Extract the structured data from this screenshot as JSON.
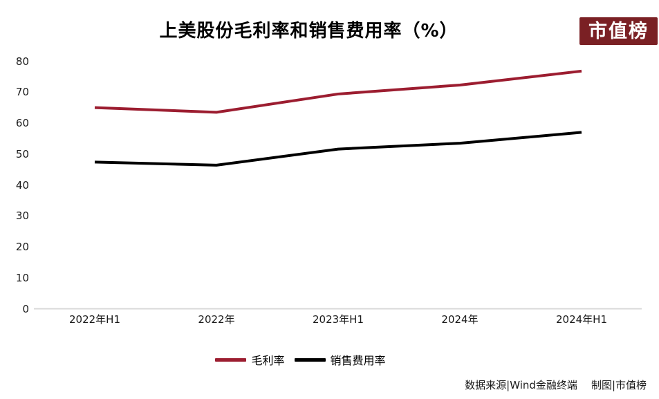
{
  "logo": {
    "text": "市值榜",
    "bg_color": "#7A2024",
    "text_color": "#FFFFFF"
  },
  "footer": {
    "source": "数据来源|Wind金融终端",
    "credit": "制图|市值榜"
  },
  "chart_data": {
    "type": "line",
    "title": "上美股份毛利率和销售费用率（%）",
    "categories": [
      "2022年H1",
      "2022年",
      "2023年H1",
      "2024年",
      "2024年H1"
    ],
    "series": [
      {
        "name": "毛利率",
        "color": "#9C1D30",
        "values": [
          65.0,
          63.5,
          69.4,
          72.3,
          76.8
        ]
      },
      {
        "name": "销售费用率",
        "color": "#000000",
        "values": [
          47.4,
          46.4,
          51.6,
          53.5,
          57.0
        ]
      }
    ],
    "ylim": [
      0,
      80
    ],
    "y_ticks": [
      80,
      70,
      60,
      50,
      40,
      30,
      20,
      10,
      0
    ],
    "grid": false,
    "axis_line_color": "#D9D9D9",
    "legend_position": "bottom"
  }
}
